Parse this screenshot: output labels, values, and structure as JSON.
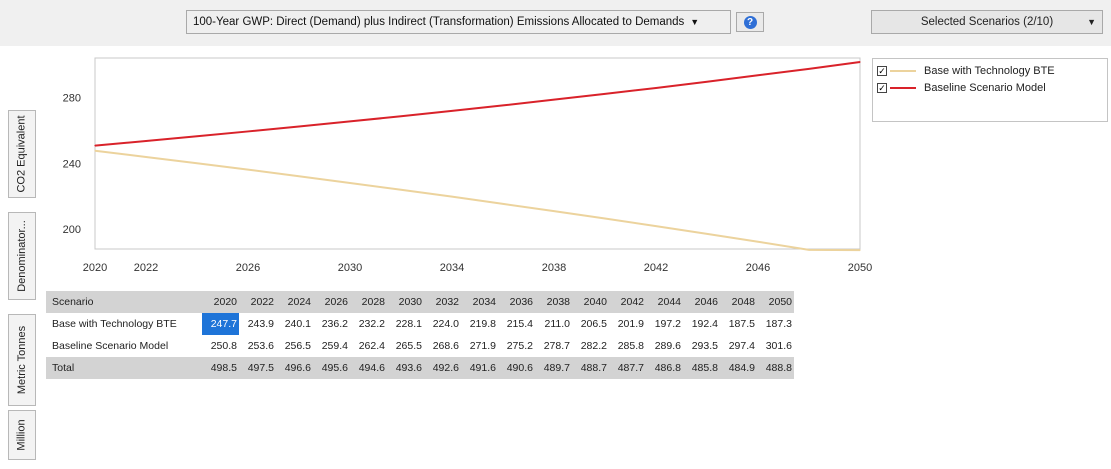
{
  "toolbar": {
    "indicator": "100-Year GWP: Direct (Demand) plus Indirect (Transformation) Emissions Allocated to Demands",
    "help_label": "?",
    "scenarios_label": "Selected Scenarios (2/10)"
  },
  "side_tabs": [
    "CO2 Equivalent",
    "Denominator...",
    "Metric Tonnes",
    "Million"
  ],
  "legend": {
    "items": [
      {
        "label": "Base with Technology BTE",
        "checked": true,
        "color": "#ecd39d"
      },
      {
        "label": "Baseline Scenario Model",
        "checked": true,
        "color": "#d9222a"
      }
    ]
  },
  "chart_data": {
    "type": "line",
    "x": [
      2020,
      2022,
      2024,
      2026,
      2028,
      2030,
      2032,
      2034,
      2036,
      2038,
      2040,
      2042,
      2044,
      2046,
      2048,
      2050
    ],
    "x_ticks": [
      2020,
      2022,
      2026,
      2030,
      2034,
      2038,
      2042,
      2046,
      2050
    ],
    "y_ticks": [
      200,
      240,
      280
    ],
    "xlim": [
      2020,
      2050
    ],
    "ylim": [
      188,
      304
    ],
    "grid": false,
    "legend_position": "right",
    "series": [
      {
        "name": "Base with Technology BTE",
        "color": "#ecd39d",
        "values": [
          247.7,
          243.9,
          240.1,
          236.2,
          232.2,
          228.1,
          224.0,
          219.8,
          215.4,
          211.0,
          206.5,
          201.9,
          197.2,
          192.4,
          187.5,
          187.3
        ]
      },
      {
        "name": "Baseline Scenario Model",
        "color": "#d9222a",
        "values": [
          250.8,
          253.6,
          256.5,
          259.4,
          262.4,
          265.5,
          268.6,
          271.9,
          275.2,
          278.7,
          282.2,
          285.8,
          289.6,
          293.5,
          297.4,
          301.6
        ]
      }
    ]
  },
  "table": {
    "header_label": "Scenario",
    "years": [
      "2020",
      "2022",
      "2024",
      "2026",
      "2028",
      "2030",
      "2032",
      "2034",
      "2036",
      "2038",
      "2040",
      "2042",
      "2044",
      "2046",
      "2048",
      "2050"
    ],
    "rows": [
      {
        "label": "Base with Technology BTE",
        "values": [
          "247.7",
          "243.9",
          "240.1",
          "236.2",
          "232.2",
          "228.1",
          "224.0",
          "219.8",
          "215.4",
          "211.0",
          "206.5",
          "201.9",
          "197.2",
          "192.4",
          "187.5",
          "187.3"
        ]
      },
      {
        "label": "Baseline Scenario Model",
        "values": [
          "250.8",
          "253.6",
          "256.5",
          "259.4",
          "262.4",
          "265.5",
          "268.6",
          "271.9",
          "275.2",
          "278.7",
          "282.2",
          "285.8",
          "289.6",
          "293.5",
          "297.4",
          "301.6"
        ]
      }
    ],
    "total": {
      "label": "Total",
      "values": [
        "498.5",
        "497.5",
        "496.6",
        "495.6",
        "494.6",
        "493.6",
        "492.6",
        "491.6",
        "490.6",
        "489.7",
        "488.7",
        "487.7",
        "486.8",
        "485.8",
        "484.9",
        "488.8"
      ]
    }
  }
}
